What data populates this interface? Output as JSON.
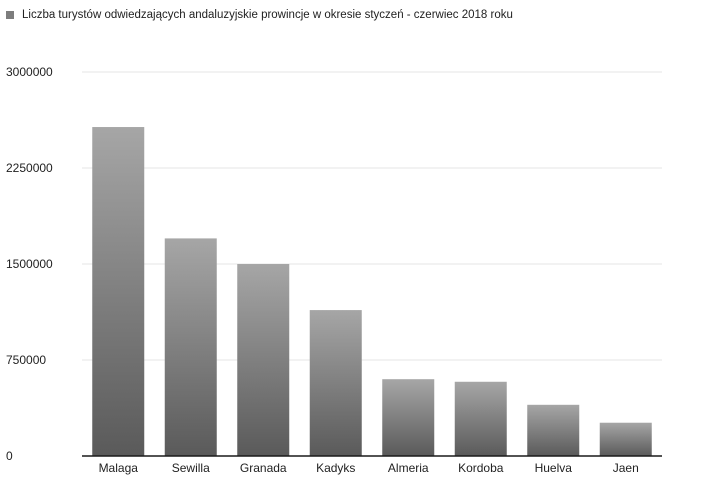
{
  "chart_data": {
    "type": "bar",
    "title": "",
    "legend": {
      "placement": "top-left",
      "entries": [
        "Liczba turystów odwiedzających andaluzyjskie prowincje w okresie styczeń - czerwiec 2018 roku"
      ]
    },
    "xlabel": "",
    "ylabel": "",
    "ylim": [
      0,
      3000000
    ],
    "yticks": [
      "0",
      "750000",
      "1500000",
      "2250000",
      "3000000"
    ],
    "grid": true,
    "categories": [
      "Malaga",
      "Sewilla",
      "Granada",
      "Kadyks",
      "Almeria",
      "Kordoba",
      "Huelva",
      "Jaen"
    ],
    "series": [
      {
        "name": "Liczba turystów odwiedzających andaluzyjskie prowincje w okresie styczeń - czerwiec 2018 roku",
        "values": [
          2570000,
          1700000,
          1500000,
          1140000,
          600000,
          580000,
          400000,
          260000
        ],
        "color": "#8a8a8a"
      }
    ]
  }
}
